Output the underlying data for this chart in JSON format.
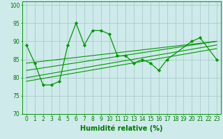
{
  "title": "",
  "xlabel": "Humidité relative (%)",
  "ylabel": "",
  "bg_color": "#ceeaea",
  "grid_color": "#aacccc",
  "line_color": "#009900",
  "marker_color": "#009900",
  "xlim": [
    -0.5,
    23.5
  ],
  "ylim": [
    70,
    101
  ],
  "yticks": [
    70,
    75,
    80,
    85,
    90,
    95,
    100
  ],
  "xticks": [
    0,
    1,
    2,
    3,
    4,
    5,
    6,
    7,
    8,
    9,
    10,
    11,
    12,
    13,
    14,
    15,
    16,
    17,
    18,
    19,
    20,
    21,
    22,
    23
  ],
  "main_data": [
    89,
    84,
    78,
    78,
    79,
    89,
    95,
    89,
    93,
    93,
    92,
    86,
    86,
    84,
    85,
    84,
    82,
    85,
    90,
    91,
    85
  ],
  "main_x": [
    0,
    1,
    2,
    3,
    4,
    5,
    6,
    7,
    8,
    9,
    10,
    11,
    12,
    13,
    14,
    15,
    16,
    17,
    20,
    21,
    23
  ],
  "trend_lines": [
    {
      "x": [
        0,
        23
      ],
      "y": [
        84,
        90
      ]
    },
    {
      "x": [
        0,
        23
      ],
      "y": [
        82,
        90
      ]
    },
    {
      "x": [
        0,
        23
      ],
      "y": [
        80,
        89
      ]
    },
    {
      "x": [
        0,
        23
      ],
      "y": [
        79,
        88
      ]
    }
  ],
  "font_color": "#007700",
  "font_size_label": 7,
  "font_size_tick": 5.5
}
